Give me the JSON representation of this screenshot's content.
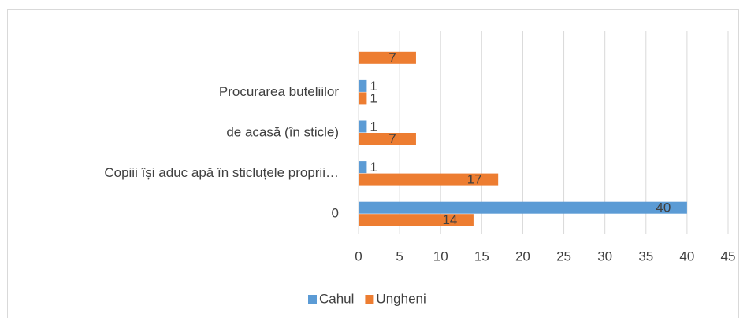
{
  "chart_data": {
    "type": "bar",
    "orientation": "horizontal",
    "categories": [
      "0",
      "Copiii își aduc apă în sticluțele proprii…",
      "de acasă (în sticle)",
      "Procurarea buteliilor",
      null
    ],
    "series": [
      {
        "name": "Cahul",
        "color": "#5b9bd5",
        "values": [
          40,
          1,
          1,
          1,
          null
        ]
      },
      {
        "name": "Ungheni",
        "color": "#ed7d31",
        "values": [
          14,
          17,
          7,
          1,
          7
        ]
      }
    ],
    "xlim": [
      0,
      45
    ],
    "xticks": [
      0,
      5,
      10,
      15,
      20,
      25,
      30,
      35,
      40,
      45
    ],
    "grid": true,
    "legend": "bottom"
  }
}
